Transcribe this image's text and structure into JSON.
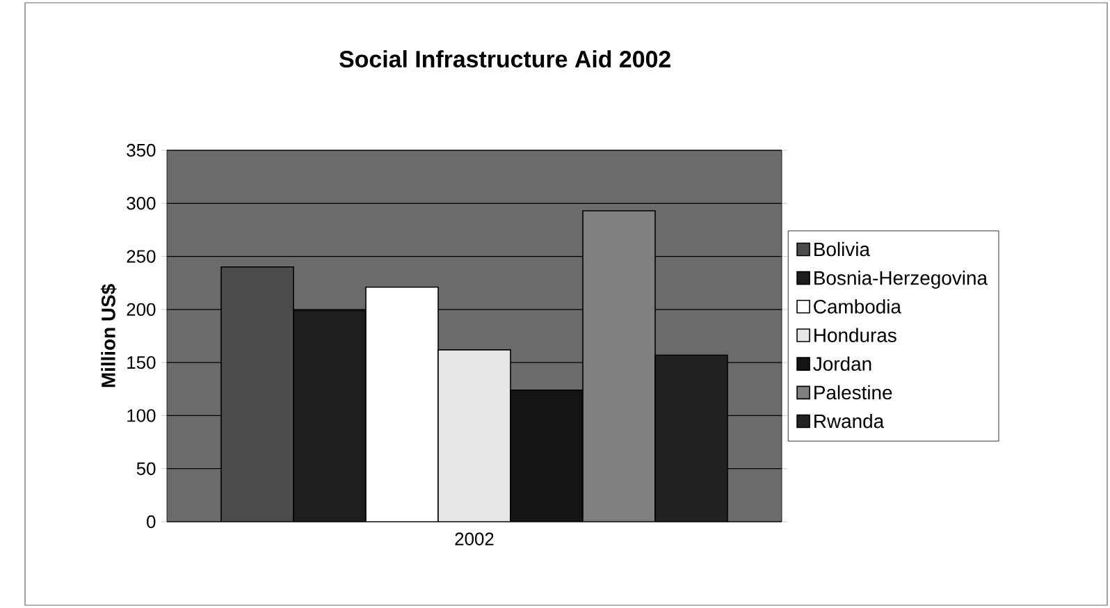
{
  "chart_data": {
    "type": "bar",
    "title": "Social Infrastructure Aid 2002",
    "ylabel": "Million US$",
    "categories": [
      "2002"
    ],
    "series": [
      {
        "name": "Bolivia",
        "color": "#4c4c4c",
        "values": [
          240
        ]
      },
      {
        "name": "Bosnia-Herzegovina",
        "color": "#1e1e1e",
        "values": [
          199
        ]
      },
      {
        "name": "Cambodia",
        "color": "#ffffff",
        "values": [
          221
        ]
      },
      {
        "name": "Honduras",
        "color": "#e6e6e6",
        "values": [
          162
        ]
      },
      {
        "name": "Jordan",
        "color": "#141414",
        "values": [
          124
        ]
      },
      {
        "name": "Palestine",
        "color": "#808080",
        "values": [
          293
        ]
      },
      {
        "name": "Rwanda",
        "color": "#222222",
        "values": [
          157
        ]
      }
    ],
    "ylim": [
      0,
      350
    ],
    "yticks": [
      0,
      50,
      100,
      150,
      200,
      250,
      300,
      350
    ],
    "grid": "y",
    "legend": "right"
  }
}
